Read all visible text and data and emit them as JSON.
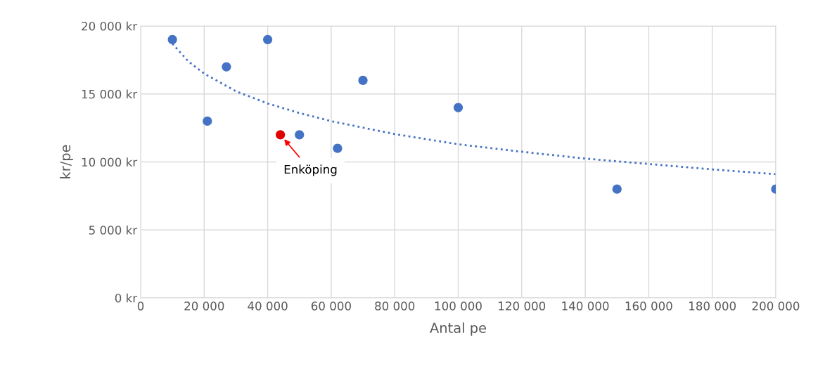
{
  "chart_data": {
    "type": "scatter",
    "xlabel": "Antal pe",
    "ylabel": "kr/pe",
    "series": [
      {
        "colors": [
          "#4472c4",
          "#4472c4",
          "#4472c4",
          "#4472c4",
          "#e00000",
          "#4472c4",
          "#4472c4",
          "#4472c4",
          "#4472c4",
          "#4472c4",
          "#4472c4"
        ],
        "x": [
          10000,
          21000,
          27000,
          40000,
          44000,
          50000,
          62000,
          70000,
          100000,
          150000,
          200000
        ],
        "values": [
          19000,
          13000,
          17000,
          19000,
          12000,
          12000,
          11000,
          16000,
          14000,
          8000,
          8000
        ],
        "marker": "circle"
      },
      {
        "type": "line",
        "color": "#4472c4",
        "line_style": "dotted",
        "marker": "none",
        "x": [
          10000,
          15000,
          20000,
          30000,
          40000,
          50000,
          60000,
          80000,
          100000,
          120000,
          140000,
          160000,
          180000,
          200000
        ],
        "values": [
          18700,
          17400,
          16500,
          15200,
          14300,
          13600,
          13000,
          12050,
          11300,
          10750,
          10250,
          9850,
          9450,
          9100
        ]
      }
    ],
    "annotations": [
      {
        "text": "Enköping",
        "x": 44000,
        "y": 12000
      }
    ],
    "xlim": [
      0,
      200000
    ],
    "ylim": [
      0,
      20000
    ],
    "xticks": [
      0,
      {
        "value": 20000,
        "label": "20 000"
      },
      {
        "value": 40000,
        "label": "40 000"
      },
      {
        "value": 60000,
        "label": "60 000"
      },
      {
        "value": 80000,
        "label": "80 000"
      },
      {
        "value": 100000,
        "label": "100 000"
      },
      {
        "value": 120000,
        "label": "120 000"
      },
      {
        "value": 140000,
        "label": "140 000"
      },
      {
        "value": 160000,
        "label": "160 000"
      },
      {
        "value": 180000,
        "label": "180 000"
      },
      {
        "value": 200000,
        "label": "200 000"
      }
    ],
    "yticks": [
      {
        "value": 0,
        "label": "0 kr"
      },
      {
        "value": 5000,
        "label": "5 000 kr"
      },
      {
        "value": 10000,
        "label": "10 000 kr"
      },
      {
        "value": 15000,
        "label": "15 000 kr"
      },
      {
        "value": 20000,
        "label": "20 000 kr"
      }
    ],
    "grid": true,
    "legend": false
  }
}
